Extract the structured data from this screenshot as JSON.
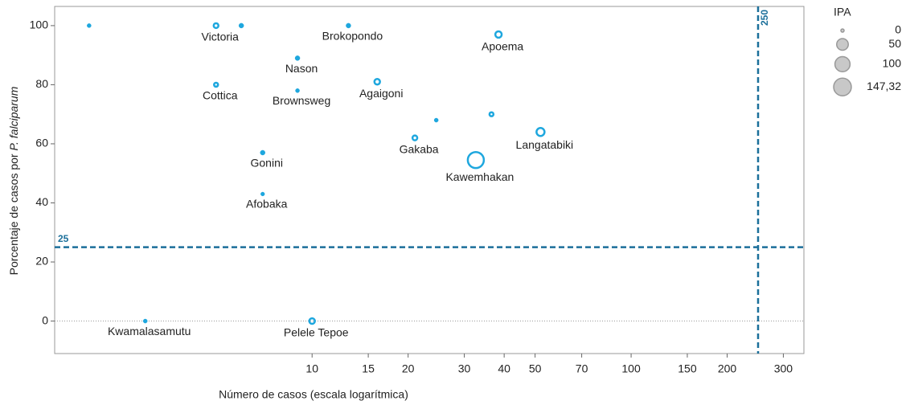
{
  "chart_data": {
    "type": "scatter",
    "x_label": "Número de casos (escala logarítmica)",
    "y_label": "Porcentaje de casos por",
    "y_label_italic": "P. falciparum",
    "log_x": true,
    "xlim": [
      1.56,
      348
    ],
    "ylim": [
      -11,
      106.5
    ],
    "xticks": [
      10,
      15,
      20,
      30,
      40,
      50,
      70,
      100,
      150,
      200,
      300
    ],
    "yticks": [
      0,
      20,
      40,
      60,
      80,
      100
    ],
    "color": "#1ea7de",
    "ref_color": "#1b6f9a",
    "ref_x": 250,
    "ref_y": 25,
    "series": [
      {
        "name": "IPA",
        "names": [
          null,
          "Victoria",
          null,
          "Brokopondo",
          "Apoema",
          "Nason",
          "Cottica",
          "Brownsweg",
          "Agaigoni",
          null,
          null,
          "Langatabiki",
          "Gakaba",
          "Kawemhakan",
          "Gonini",
          "Afobaka",
          "Kwamalasamutu",
          "Pelele Tepoe"
        ],
        "x": [
          2.0,
          5.0,
          6.0,
          13,
          38.4,
          9.0,
          5.0,
          9.0,
          16,
          24.5,
          36.5,
          52,
          21,
          32.6,
          7.0,
          7.0,
          3.0,
          10
        ],
        "values": [
          100,
          100,
          100,
          100,
          97,
          89,
          80,
          78,
          81,
          68,
          70,
          64,
          62,
          54.5,
          57,
          43,
          0,
          0
        ],
        "sizes": [
          0.5,
          7,
          1.8,
          1.8,
          16,
          1.8,
          4,
          0.5,
          11,
          0.5,
          4,
          29,
          7,
          147.32,
          1.8,
          0.3,
          0.5,
          11
        ]
      }
    ],
    "legend_sizes": [
      0,
      50,
      100,
      {
        "value": 147.32,
        "label": "147,32"
      }
    ]
  }
}
